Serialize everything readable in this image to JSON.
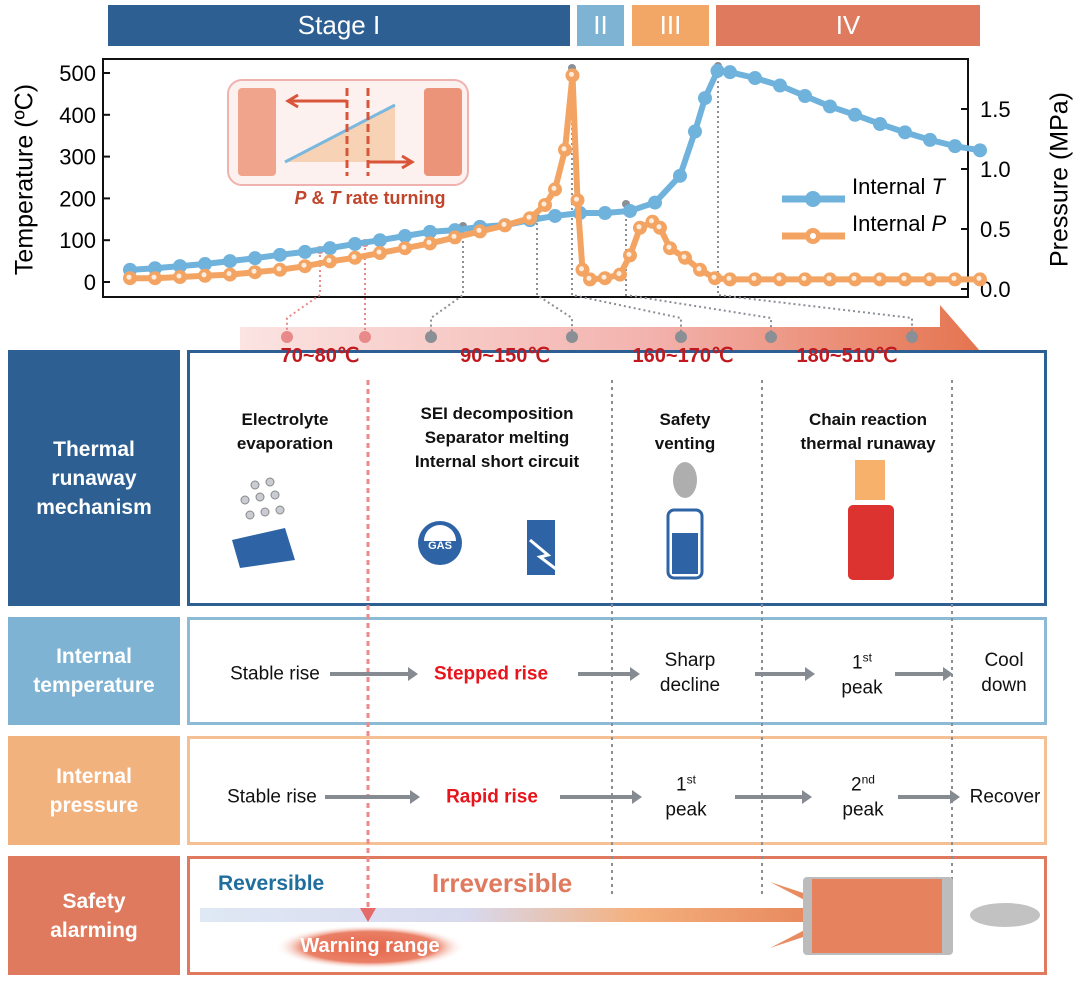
{
  "stages": [
    {
      "label": "Stage I",
      "color": "#2d5f93"
    },
    {
      "label": "II",
      "color": "#7fb3d3"
    },
    {
      "label": "III",
      "color": "#f2a766"
    },
    {
      "label": "IV",
      "color": "#df7a5e"
    }
  ],
  "chart_data": {
    "type": "line",
    "xlabel": "",
    "ylabel": "Temperature (ºC)",
    "y2label": "Pressure (MPa)",
    "ylim": [
      -50,
      520
    ],
    "y2lim": [
      -0.07,
      1.9
    ],
    "yticks": [
      "0",
      "100",
      "200",
      "300",
      "400",
      "500"
    ],
    "y2ticks": [
      "0.0",
      "0.5",
      "1.0",
      "1.5"
    ],
    "legend_position": "right",
    "grid": false,
    "series": [
      {
        "name": "Internal T",
        "axis": "left",
        "color": "#6fb2dc",
        "points": [
          [
            0,
            29
          ],
          [
            1,
            33
          ],
          [
            2,
            38
          ],
          [
            3,
            43
          ],
          [
            4,
            50
          ],
          [
            5,
            57
          ],
          [
            6,
            65
          ],
          [
            7,
            72
          ],
          [
            8,
            81
          ],
          [
            9,
            91
          ],
          [
            10,
            100
          ],
          [
            11,
            110
          ],
          [
            12,
            120
          ],
          [
            13,
            124
          ],
          [
            14,
            132
          ],
          [
            15,
            136
          ],
          [
            16,
            148
          ],
          [
            17,
            158
          ],
          [
            18,
            165
          ],
          [
            19,
            165
          ],
          [
            20,
            170
          ],
          [
            21,
            190
          ],
          [
            22,
            254
          ],
          [
            22.6,
            360
          ],
          [
            23,
            440
          ],
          [
            23.5,
            505
          ],
          [
            24,
            502
          ],
          [
            25,
            488
          ],
          [
            26,
            470
          ],
          [
            27,
            445
          ],
          [
            28,
            420
          ],
          [
            29,
            400
          ],
          [
            30,
            378
          ],
          [
            31,
            358
          ],
          [
            32,
            340
          ],
          [
            33,
            325
          ],
          [
            34,
            315
          ]
        ]
      },
      {
        "name": "Internal P",
        "axis": "right",
        "color": "#f4a462",
        "points": [
          [
            0,
            0.09
          ],
          [
            1,
            0.09
          ],
          [
            2,
            0.1
          ],
          [
            3,
            0.11
          ],
          [
            4,
            0.12
          ],
          [
            5,
            0.14
          ],
          [
            6,
            0.16
          ],
          [
            7,
            0.19
          ],
          [
            8,
            0.23
          ],
          [
            9,
            0.26
          ],
          [
            10,
            0.3
          ],
          [
            11,
            0.34
          ],
          [
            12,
            0.38
          ],
          [
            13,
            0.43
          ],
          [
            14,
            0.48
          ],
          [
            15,
            0.53
          ],
          [
            16,
            0.59
          ],
          [
            16.6,
            0.7
          ],
          [
            17,
            0.83
          ],
          [
            17.4,
            1.16
          ],
          [
            17.7,
            1.78
          ],
          [
            17.9,
            0.74
          ],
          [
            18.1,
            0.16
          ],
          [
            18.4,
            0.08
          ],
          [
            19,
            0.09
          ],
          [
            19.6,
            0.12
          ],
          [
            20,
            0.28
          ],
          [
            20.4,
            0.51
          ],
          [
            20.9,
            0.56
          ],
          [
            21.2,
            0.51
          ],
          [
            21.6,
            0.34
          ],
          [
            22.2,
            0.26
          ],
          [
            22.8,
            0.16
          ],
          [
            23.4,
            0.09
          ],
          [
            24,
            0.08
          ],
          [
            25,
            0.08
          ],
          [
            26,
            0.08
          ],
          [
            27,
            0.08
          ],
          [
            28,
            0.08
          ],
          [
            29,
            0.08
          ],
          [
            30,
            0.08
          ],
          [
            31,
            0.08
          ],
          [
            32,
            0.08
          ],
          [
            33,
            0.08
          ],
          [
            34,
            0.08
          ]
        ]
      }
    ],
    "annotation": "P & T rate turning"
  },
  "legend": {
    "t_prefix": "Internal ",
    "t_var": "T",
    "p_prefix": "Internal ",
    "p_var": "P"
  },
  "inset": {
    "caption_p": "P",
    "caption_mid": " & ",
    "caption_t": "T",
    "caption_rest": " rate turning"
  },
  "temperature_ranges": [
    "70~80℃",
    "90~150℃",
    "160~170℃",
    "180~510℃"
  ],
  "rows": {
    "mechanism": {
      "label": "Thermal\nrunaway\nmechanism",
      "color": "#2d5f93",
      "items": [
        "Electrolyte\nevaporation",
        "SEI decomposition\nSeparator melting\nInternal short circuit",
        "Safety\nventing",
        "Chain reaction\nthermal runaway"
      ],
      "gas_icon_text": "GAS"
    },
    "temperature": {
      "label": "Internal\ntemperature",
      "color": "#7fb3d3",
      "steps": [
        "Stable rise",
        "Stepped rise",
        "Sharp\ndecline",
        "1",
        "st",
        "peak",
        "Cool\ndown"
      ]
    },
    "pressure": {
      "label": "Internal\npressure",
      "color": "#f2b27e",
      "steps": [
        "Stable rise",
        "Rapid rise",
        "1",
        "st",
        "peak",
        "2",
        "nd",
        "peak",
        "Recover"
      ]
    },
    "safety": {
      "label": "Safety\nalarming",
      "color": "#df7a5e",
      "reversible": "Reversible",
      "irreversible": "Irreversible",
      "warning": "Warning range"
    }
  }
}
